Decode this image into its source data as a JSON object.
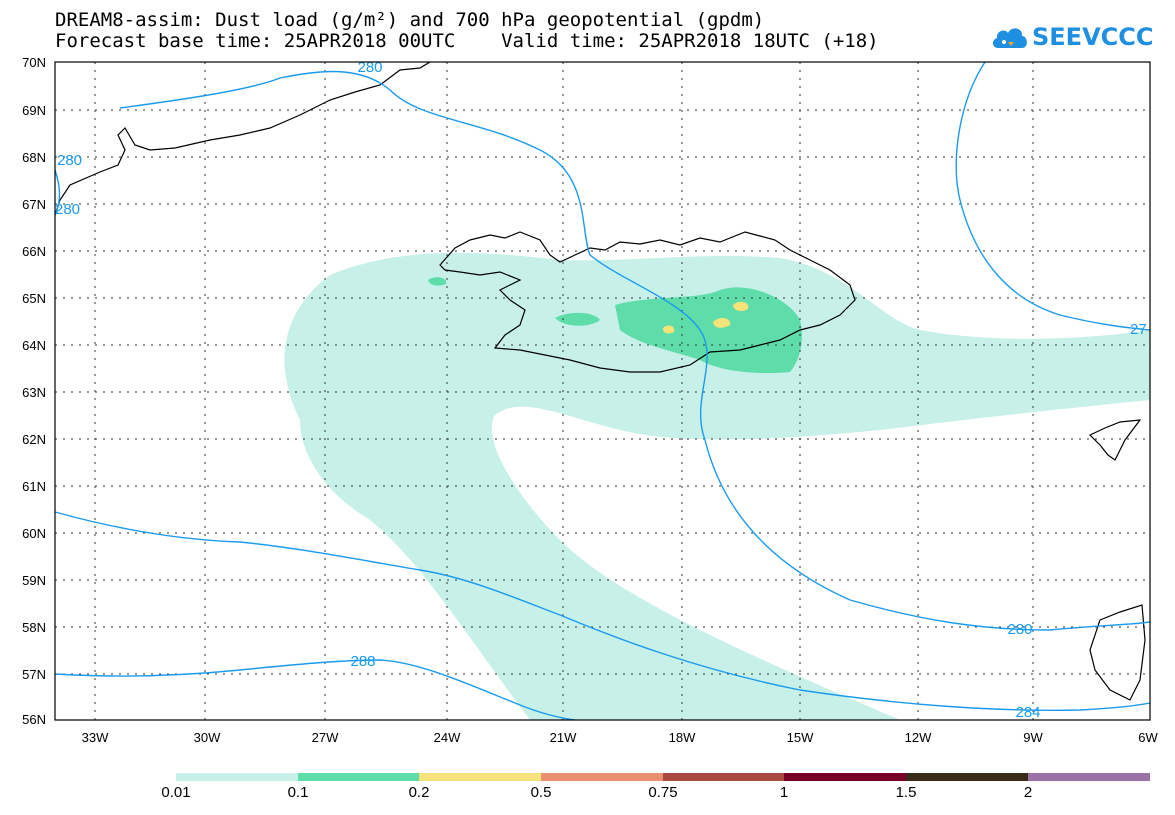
{
  "title": {
    "line1": "DREAM8-assim: Dust load (g/m²) and 700 hPa geopotential (gpdm)",
    "line2": "Forecast base time: 25APR2018 00UTC    Valid time: 25APR2018 18UTC (+18)"
  },
  "logo": {
    "text": "SEEVCCC",
    "icon": "cloud-icon",
    "color": "#1e8fe1"
  },
  "map": {
    "lon_range": [
      -34.5,
      -6
    ],
    "lat_range": [
      56,
      70
    ],
    "lat_ticks": [
      "70N",
      "69N",
      "68N",
      "67N",
      "66N",
      "65N",
      "64N",
      "63N",
      "62N",
      "61N",
      "60N",
      "59N",
      "58N",
      "57N",
      "56N"
    ],
    "lon_ticks": [
      "33W",
      "30W",
      "27W",
      "24W",
      "21W",
      "18W",
      "15W",
      "12W",
      "9W",
      "6W"
    ],
    "contour_color": "#1a9bf0",
    "contour_labels": [
      "280",
      "280",
      "280",
      "27",
      "280",
      "288",
      "284"
    ],
    "grid": "dotted"
  },
  "colorbar": {
    "levels": [
      "0.01",
      "0.1",
      "0.2",
      "0.5",
      "0.75",
      "1",
      "1.5",
      "2"
    ],
    "colors": [
      "#c6f0e8",
      "#5edcaa",
      "#f5e37a",
      "#e89070",
      "#a8483e",
      "#7a0028",
      "#3a2a18",
      "#9a72a8"
    ]
  }
}
